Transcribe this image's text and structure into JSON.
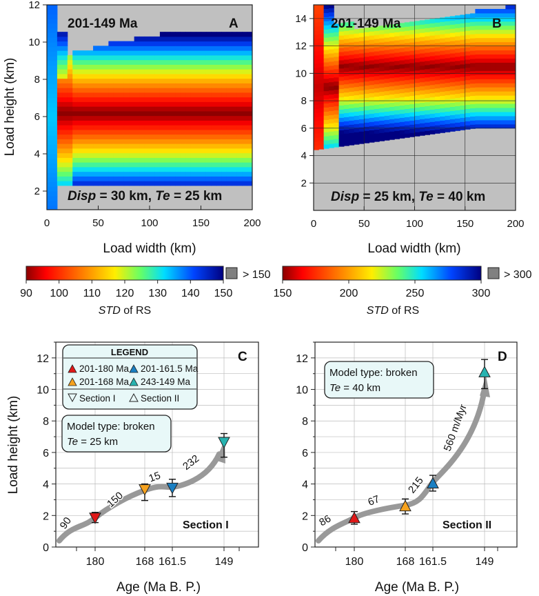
{
  "colors": {
    "gray": "#c0c0c0",
    "arrow": "#999999",
    "red_marker": "#e01818",
    "orange_marker": "#f6a21e",
    "blue_marker": "#1a7fc2",
    "teal_marker": "#27b3b0",
    "legend_bg": "#e8f8f8"
  },
  "chart_data": [
    {
      "panel": "A",
      "type": "heatmap",
      "title": "201-149 Ma",
      "annotation": {
        "disp_label": "Disp",
        "disp_value": " = 30 km, ",
        "te_label": "Te",
        "te_value": " = 25 km"
      },
      "xlabel": "Load width (km)",
      "ylabel": "Load height (km)",
      "xlim": [
        0,
        200
      ],
      "ylim": [
        1,
        12
      ],
      "xticks": [
        0,
        50,
        100,
        150,
        200
      ],
      "yticks": [
        2,
        4,
        6,
        8,
        10,
        12
      ],
      "colorbar": {
        "label_italic": "STD",
        "label_rest": " of RS",
        "min": 90,
        "max": 150,
        "ticks": [
          90,
          100,
          110,
          120,
          130,
          140,
          150
        ],
        "overflow_label": "> 150"
      },
      "model": {
        "valid_top_near_load": 9.2,
        "valid_top_far": 10.4,
        "valid_bottom": 2.3,
        "min_std_center": 6.2,
        "min_std_value": 90
      }
    },
    {
      "panel": "B",
      "type": "heatmap",
      "title": "201-149 Ma",
      "annotation": {
        "disp_label": "Disp",
        "disp_value": " = 25 km, ",
        "te_label": "Te",
        "te_value": " = 40 km"
      },
      "xlabel": "Load width (km)",
      "ylabel": "",
      "xlim": [
        0,
        200
      ],
      "ylim": [
        0,
        15
      ],
      "xticks": [
        0,
        50,
        100,
        150,
        200
      ],
      "yticks": [
        2,
        4,
        6,
        8,
        10,
        12,
        14
      ],
      "colorbar": {
        "label_italic": "STD",
        "label_rest": " of RS",
        "min": 150,
        "max": 300,
        "ticks": [
          150,
          200,
          250,
          300
        ],
        "overflow_label": "> 300"
      },
      "model": {
        "valid_top": 13.7,
        "valid_bottom_near": 4.4,
        "valid_bottom_far": 6.0,
        "min_std_center": 10.5,
        "min_std_value": 150
      }
    },
    {
      "panel": "C",
      "type": "scatter",
      "xlabel": "Age (Ma B. P.)",
      "ylabel": "Load height (km)",
      "ylim": [
        0,
        13
      ],
      "yticks": [
        0,
        2,
        4,
        6,
        8,
        10,
        12
      ],
      "xticks": [
        "180",
        "168",
        "161.5",
        "149"
      ],
      "points": [
        {
          "age": "180",
          "value": 1.85,
          "err_low": 1.55,
          "err_high": 2.2,
          "color": "red",
          "marker": "down"
        },
        {
          "age": "168",
          "value": 3.65,
          "err_low": 2.95,
          "err_high": 4.0,
          "color": "orange",
          "marker": "down"
        },
        {
          "age": "161.5",
          "value": 3.75,
          "err_low": 3.2,
          "err_high": 4.3,
          "color": "blue",
          "marker": "down"
        },
        {
          "age": "149",
          "value": 6.65,
          "err_low": 5.7,
          "err_high": 7.2,
          "color": "teal",
          "marker": "down"
        }
      ],
      "rate_labels": [
        "90",
        "150",
        "15",
        "232"
      ],
      "section_label": "Section I",
      "model_box": {
        "line1": "Model type: broken",
        "te_label": "Te",
        "te_value": " = 25 km"
      },
      "legend": {
        "title": "LEGEND",
        "items": [
          "201-180 Ma",
          "201-161.5 Ma",
          "201-168 Ma",
          "243-149 Ma",
          "Section I",
          "Section II"
        ]
      }
    },
    {
      "panel": "D",
      "type": "scatter",
      "xlabel": "Age (Ma B. P.)",
      "ylabel": "",
      "ylim": [
        0,
        13
      ],
      "yticks": [
        0,
        2,
        4,
        6,
        8,
        10,
        12
      ],
      "xticks": [
        "180",
        "168",
        "161.5",
        "149"
      ],
      "points": [
        {
          "age": "180",
          "value": 1.85,
          "err_low": 1.45,
          "err_high": 2.25,
          "color": "red",
          "marker": "up"
        },
        {
          "age": "168",
          "value": 2.6,
          "err_low": 2.1,
          "err_high": 3.05,
          "color": "orange",
          "marker": "up"
        },
        {
          "age": "161.5",
          "value": 4.05,
          "err_low": 3.55,
          "err_high": 4.55,
          "color": "blue",
          "marker": "up"
        },
        {
          "age": "149",
          "value": 11.1,
          "err_low": 10.05,
          "err_high": 11.9,
          "color": "teal",
          "marker": "up"
        }
      ],
      "rate_labels": [
        "86",
        "67",
        "215",
        "560 m/Myr"
      ],
      "section_label": "Section II",
      "model_box": {
        "line1": "Model type: broken",
        "te_label": "Te",
        "te_value": " = 40 km"
      }
    }
  ]
}
